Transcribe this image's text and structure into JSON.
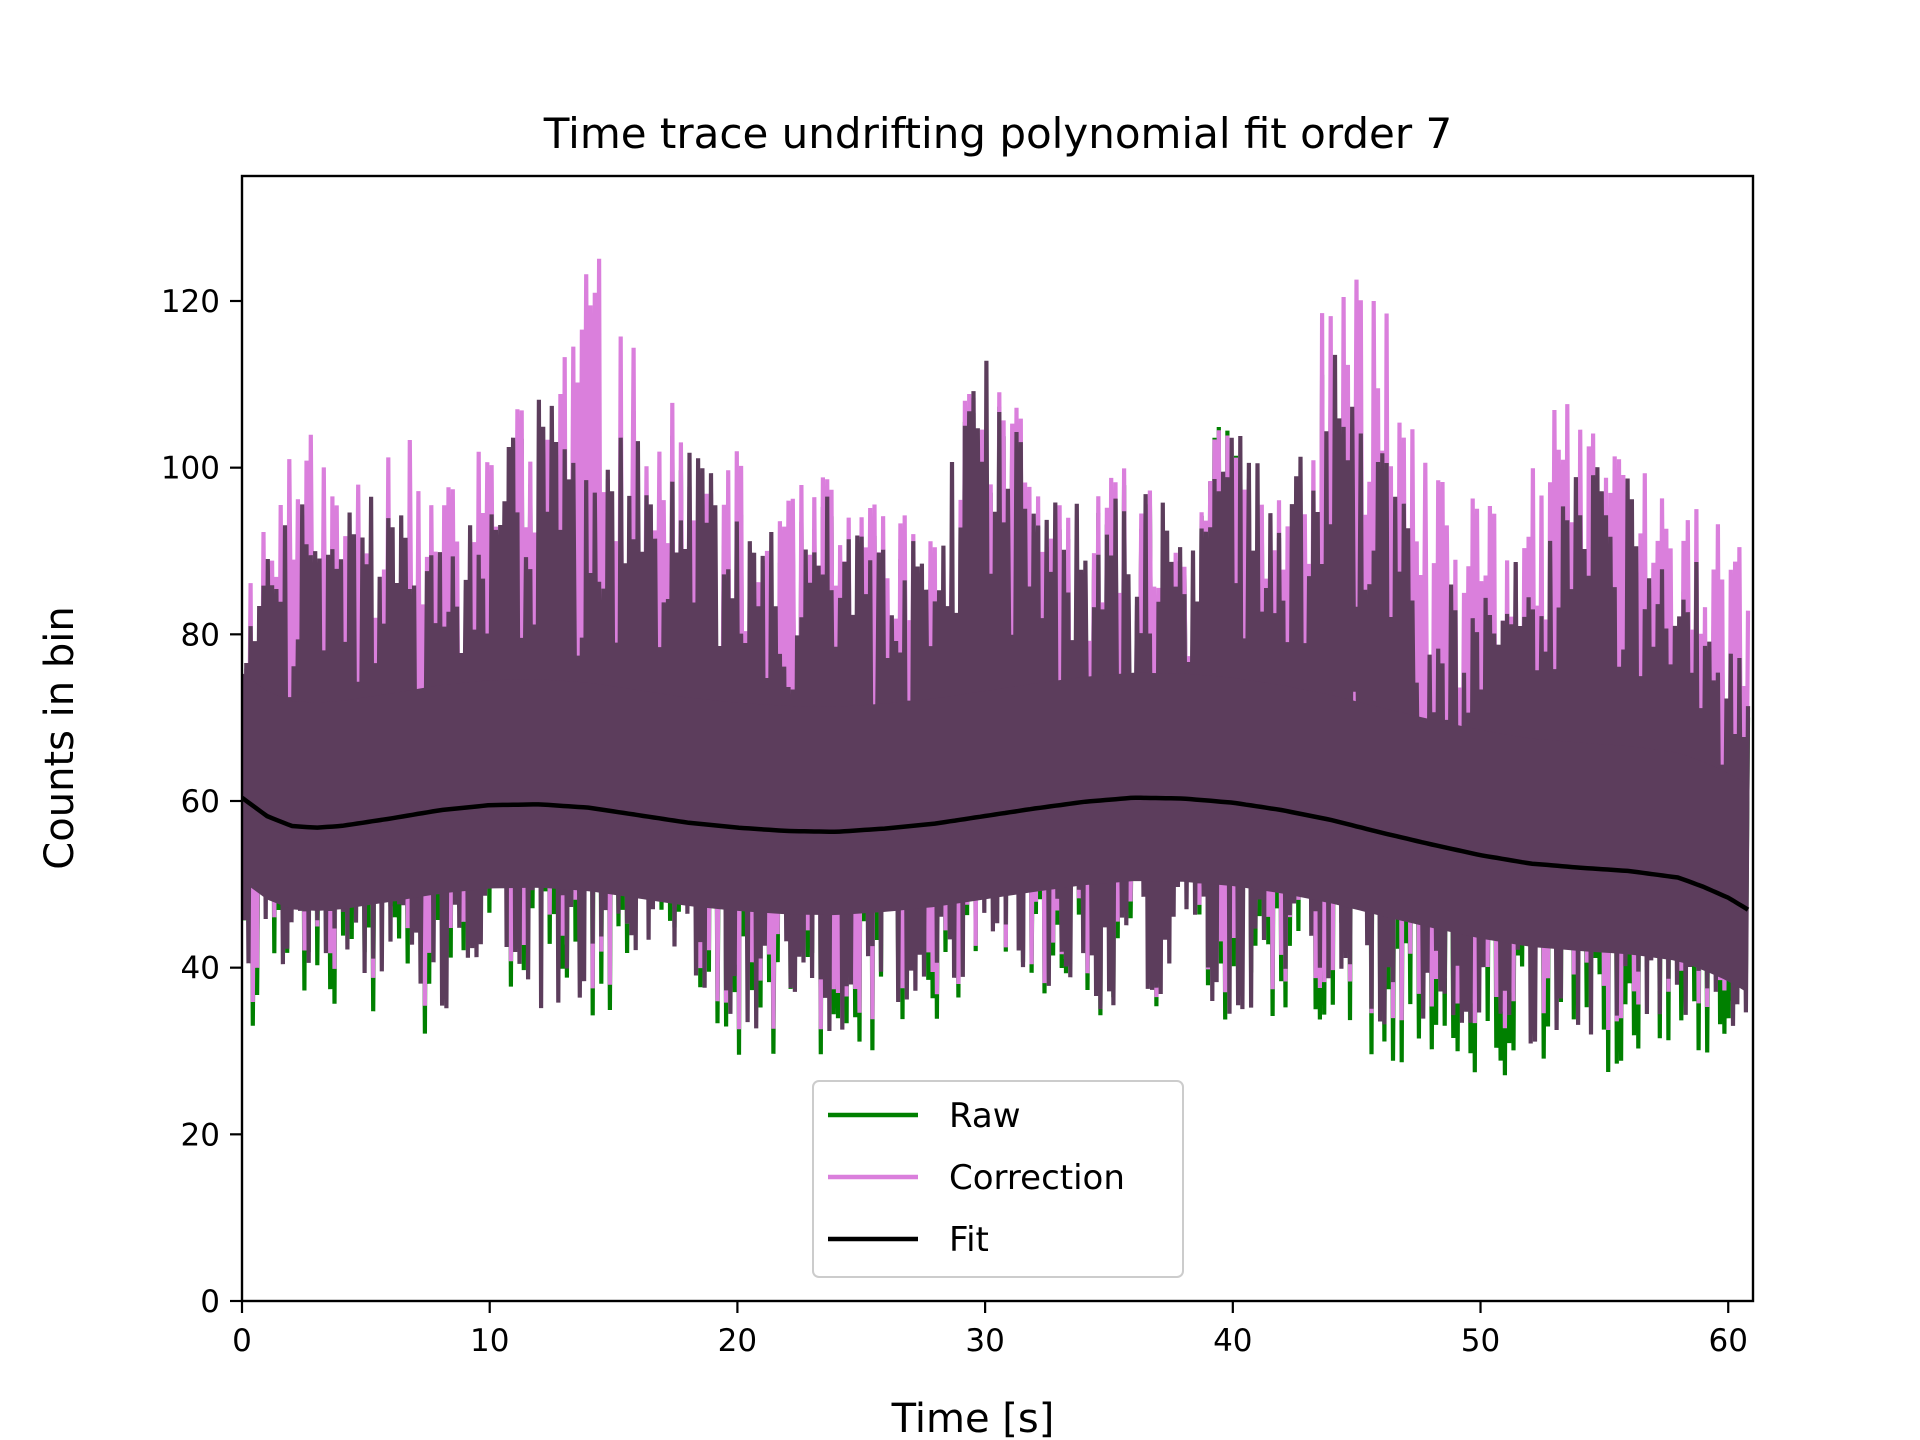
{
  "chart_data": {
    "type": "line",
    "title": "Time trace undrifting polynomial fit order 7",
    "xlabel": "Time [s]",
    "ylabel": "Counts in bin",
    "xlim": [
      0,
      61
    ],
    "ylim": [
      0,
      135
    ],
    "xticks": [
      0,
      10,
      20,
      30,
      40,
      50,
      60
    ],
    "yticks": [
      0,
      20,
      40,
      60,
      80,
      100,
      120
    ],
    "xtick_labels": [
      "0",
      "10",
      "20",
      "30",
      "40",
      "50",
      "60"
    ],
    "ytick_labels": [
      "0",
      "20",
      "40",
      "60",
      "80",
      "100",
      "120"
    ],
    "grid": false,
    "legend_position": "bottom-center",
    "series": [
      {
        "name": "Raw",
        "color": "#008000",
        "description_points": "envelope of noisy trace (approx.)",
        "x": [
          0,
          2,
          4,
          6,
          8,
          10,
          12,
          14,
          16,
          18,
          20,
          22,
          24,
          26,
          28,
          30,
          32,
          34,
          36,
          38,
          40,
          42,
          44,
          46,
          48,
          50,
          52,
          54,
          56,
          58,
          60,
          61
        ],
        "upper": [
          83,
          100,
          95,
          98,
          90,
          100,
          109,
          106,
          107,
          103,
          96,
          92,
          98,
          92,
          93,
          121,
          97,
          96,
          99,
          98,
          109,
          93,
          116,
          103,
          88,
          86,
          90,
          101,
          99,
          90,
          88,
          70
        ],
        "lower": [
          28,
          36,
          34,
          35,
          30,
          40,
          30,
          33,
          37,
          38,
          28,
          30,
          29,
          30,
          33,
          40,
          37,
          33,
          33,
          38,
          30,
          34,
          33,
          28,
          29,
          27,
          25,
          26,
          27,
          28,
          28,
          24
        ]
      },
      {
        "name": "Correction",
        "color": "#da7fdc",
        "x": [
          0,
          2,
          4,
          6,
          8,
          10,
          12,
          14,
          16,
          18,
          20,
          22,
          24,
          26,
          28,
          30,
          32,
          34,
          36,
          38,
          40,
          42,
          44,
          46,
          48,
          50,
          52,
          54,
          56,
          58,
          60,
          61
        ],
        "upper": [
          89,
          107,
          101,
          108,
          97,
          106,
          111,
          129,
          113,
          106,
          102,
          97,
          101,
          96,
          98,
          122,
          101,
          98,
          101,
          99,
          108,
          98,
          124,
          124,
          99,
          97,
          105,
          109,
          107,
          96,
          95,
          85
        ],
        "lower": [
          30,
          41,
          38,
          39,
          33,
          43,
          33,
          36,
          40,
          40,
          31,
          33,
          32,
          34,
          36,
          40,
          38,
          35,
          35,
          38,
          34,
          37,
          37,
          33,
          34,
          33,
          30,
          31,
          32,
          34,
          33,
          30
        ]
      },
      {
        "name": "Fit",
        "color": "#000000",
        "x": [
          0,
          1,
          2,
          3,
          4,
          6,
          8,
          10,
          12,
          14,
          16,
          18,
          20,
          22,
          24,
          26,
          28,
          30,
          32,
          34,
          36,
          38,
          40,
          42,
          44,
          46,
          48,
          50,
          52,
          54,
          56,
          58,
          59,
          60,
          61
        ],
        "y": [
          60.4,
          58.2,
          57.0,
          56.8,
          57.0,
          57.9,
          58.9,
          59.5,
          59.6,
          59.2,
          58.3,
          57.4,
          56.8,
          56.4,
          56.3,
          56.7,
          57.3,
          58.2,
          59.1,
          59.9,
          60.4,
          60.3,
          59.8,
          58.9,
          57.7,
          56.2,
          54.8,
          53.5,
          52.5,
          52.0,
          51.6,
          50.8,
          49.7,
          48.4,
          46.6
        ]
      }
    ],
    "legend": {
      "entries": [
        {
          "label": "Raw",
          "color": "#008000"
        },
        {
          "label": "Correction",
          "color": "#da7fdc"
        },
        {
          "label": "Fit",
          "color": "#000000"
        }
      ]
    },
    "overlap_color": "#5c3d5c"
  }
}
